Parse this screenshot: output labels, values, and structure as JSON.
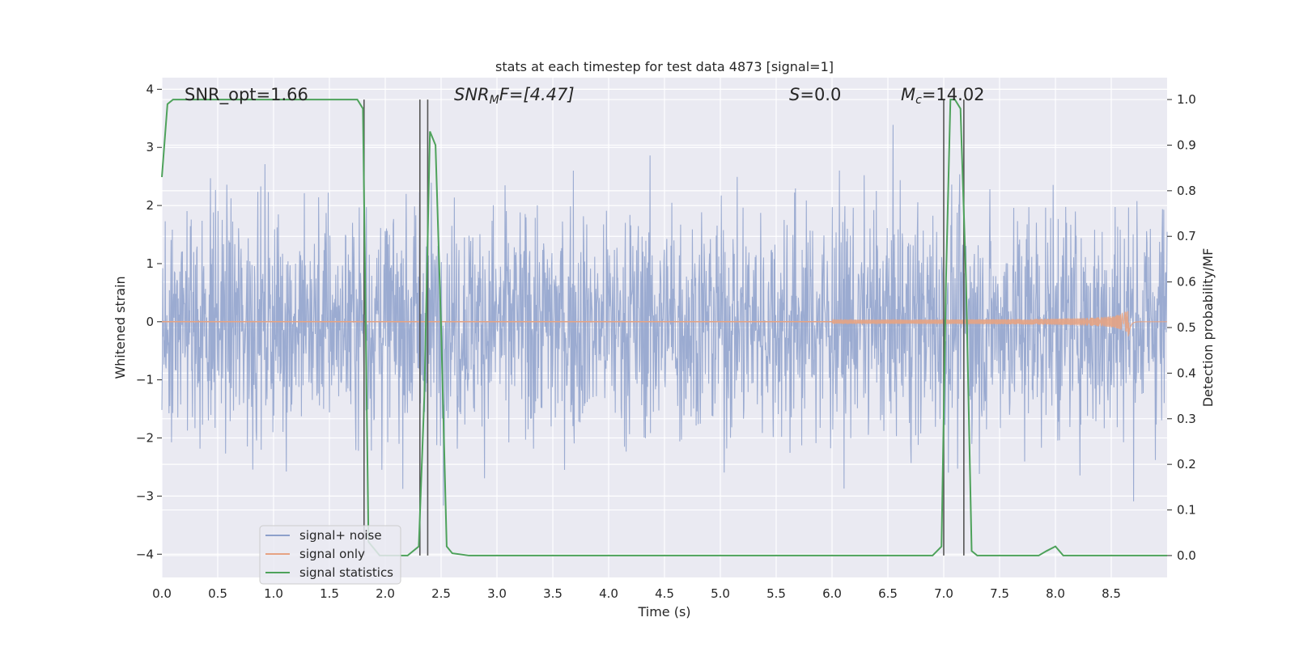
{
  "chart_data": {
    "type": "line",
    "title": "stats at each timestep for test data 4873 [signal=1]",
    "xlabel": "Time (s)",
    "ylabel_left": "Whitened strain",
    "ylabel_right": "Detection probability/MF",
    "xlim": [
      0.0,
      9.0
    ],
    "ylim_left": [
      -4.4,
      4.2
    ],
    "ylim_right": [
      -0.048,
      1.048
    ],
    "x_ticks": [
      "0.0",
      "0.5",
      "1.0",
      "1.5",
      "2.0",
      "2.5",
      "3.0",
      "3.5",
      "4.0",
      "4.5",
      "5.0",
      "5.5",
      "6.0",
      "6.5",
      "7.0",
      "7.5",
      "8.0",
      "8.5"
    ],
    "y_left_ticks": [
      "4",
      "3",
      "2",
      "1",
      "0",
      "−1",
      "−2",
      "−3",
      "−4"
    ],
    "y_right_ticks": [
      "1.0",
      "0.9",
      "0.8",
      "0.7",
      "0.6",
      "0.5",
      "0.4",
      "0.3",
      "0.2",
      "0.1",
      "0.0"
    ],
    "annotations": {
      "snr_opt": "SNR_opt=1.66",
      "snr_mf_name": "SNR",
      "snr_mf_sub": "M",
      "snr_mf_rest": "F=[4.47]",
      "s_name": "S",
      "s_rest": "=0.0",
      "mc_name": "M",
      "mc_sub": "c",
      "mc_rest": "=14.02"
    },
    "legend": {
      "placement": "lower-left",
      "entries": [
        "signal+ noise",
        "signal only",
        "signal statistics"
      ]
    },
    "colors": {
      "noise": "#8da0cb",
      "signal": "#e6a383",
      "stats": "#4ea25b",
      "vlines": "#555555",
      "plot_bg": "#eaeaf2",
      "grid": "#ffffff"
    },
    "series": [
      {
        "name": "signal+ noise",
        "description_values": "Gaussian-like whitened noise spanning roughly -4 to 4 across the full 0–9 s window"
      },
      {
        "name": "signal only",
        "chirp": {
          "start": 6.0,
          "peak_time": 8.66,
          "peak_amplitude": 0.4
        }
      },
      {
        "name": "signal statistics",
        "x": [
          0.0,
          0.05,
          0.1,
          0.2,
          0.5,
          1.0,
          1.5,
          1.75,
          1.8,
          1.85,
          1.95,
          2.0,
          2.1,
          2.2,
          2.3,
          2.35,
          2.4,
          2.45,
          2.5,
          2.55,
          2.6,
          2.75,
          3.0,
          4.0,
          5.0,
          6.0,
          6.9,
          6.98,
          7.02,
          7.06,
          7.1,
          7.15,
          7.2,
          7.25,
          7.3,
          7.5,
          7.85,
          7.92,
          8.0,
          8.07,
          8.2,
          8.5,
          9.0
        ],
        "y": [
          0.83,
          0.99,
          1.0,
          1.0,
          1.0,
          1.0,
          1.0,
          1.0,
          0.98,
          0.03,
          0.0,
          0.0,
          0.0,
          0.0,
          0.02,
          0.35,
          0.93,
          0.9,
          0.5,
          0.02,
          0.005,
          0.0,
          0.0,
          0.0,
          0.0,
          0.0,
          0.0,
          0.02,
          0.6,
          1.0,
          1.0,
          0.98,
          0.6,
          0.01,
          0.0,
          0.0,
          0.0,
          0.01,
          0.02,
          0.0,
          0.0,
          0.0,
          0.0
        ]
      }
    ],
    "vertical_lines_x": [
      1.81,
      2.31,
      2.38,
      7.0,
      7.18
    ]
  }
}
